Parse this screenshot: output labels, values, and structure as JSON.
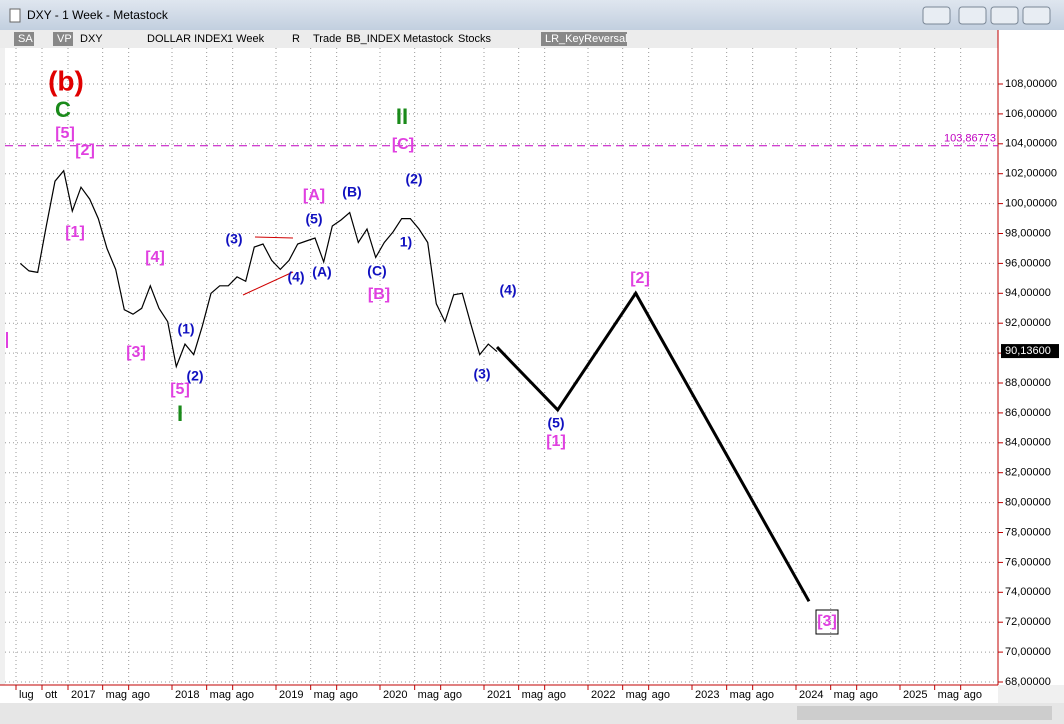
{
  "window": {
    "title": "DXY - 1 Week - Metastock"
  },
  "toolbar": {
    "items": [
      "SA",
      "VP",
      "DXY",
      "DOLLAR INDEX",
      "1 Week",
      "R",
      "Trade",
      "BB_INDEX",
      "Metastock",
      "Stocks",
      "LR_KeyReversal"
    ]
  },
  "chart_data": {
    "type": "line",
    "series": [
      {
        "color": "#000000",
        "x": [
          "2016-07",
          "2016-08",
          "2016-09",
          "2016-10",
          "2016-11",
          "2016-12",
          "2017-01",
          "2017-02",
          "2017-03",
          "2017-04",
          "2017-05",
          "2017-06",
          "2017-07",
          "2017-08",
          "2017-09",
          "2017-10",
          "2017-11",
          "2017-12",
          "2018-01",
          "2018-02",
          "2018-03",
          "2018-04",
          "2018-05",
          "2018-06",
          "2018-07",
          "2018-08",
          "2018-09",
          "2018-10",
          "2018-11",
          "2018-12",
          "2019-01",
          "2019-02",
          "2019-03",
          "2019-04",
          "2019-05",
          "2019-06",
          "2019-07",
          "2019-08",
          "2019-09",
          "2019-10",
          "2019-11",
          "2019-12",
          "2020-01",
          "2020-02",
          "2020-03",
          "2020-04",
          "2020-05",
          "2020-06",
          "2020-07",
          "2020-08",
          "2020-09",
          "2020-10",
          "2020-11",
          "2020-12",
          "2021-01",
          "2021-02"
        ],
        "values": [
          96.0,
          95.5,
          95.4,
          98.5,
          101.5,
          102.2,
          99.5,
          101.1,
          100.3,
          99.0,
          97.0,
          95.6,
          92.9,
          92.6,
          93.0,
          94.5,
          93.0,
          92.1,
          89.1,
          90.6,
          89.9,
          91.8,
          94.0,
          94.5,
          94.5,
          95.1,
          94.8,
          97.1,
          97.3,
          96.2,
          95.6,
          96.2,
          97.3,
          97.5,
          97.7,
          96.1,
          98.5,
          98.9,
          99.4,
          97.4,
          98.3,
          96.4,
          97.4,
          98.1,
          99.0,
          99.0,
          98.3,
          97.4,
          93.3,
          92.1,
          93.9,
          94.0,
          91.9,
          89.9,
          90.6,
          90.1
        ]
      },
      {
        "color": "#000000",
        "x": [
          "2021-02",
          "2021-09",
          "2022-06",
          "2024-02"
        ],
        "values": [
          90.4,
          86.2,
          94.0,
          73.4
        ]
      }
    ],
    "categories": [
      "lug",
      "ott",
      "2017",
      "mag",
      "ago",
      "2018",
      "mag",
      "ago",
      "2019",
      "mag",
      "ago",
      "2020",
      "mag",
      "ago",
      "2021",
      "mag",
      "ago",
      "2022",
      "mag",
      "ago",
      "2023",
      "mag",
      "ago",
      "2024",
      "mag",
      "ago",
      "2025",
      "mag",
      "ago"
    ],
    "ylim": [
      68,
      110.5
    ],
    "yticks": [
      {
        "value": 68,
        "label": "68,00000"
      },
      {
        "value": 70,
        "label": "70,00000"
      },
      {
        "value": 72,
        "label": "72,00000"
      },
      {
        "value": 74,
        "label": "74,00000"
      },
      {
        "value": 76,
        "label": "76,00000"
      },
      {
        "value": 78,
        "label": "78,00000"
      },
      {
        "value": 80,
        "label": "80,00000"
      },
      {
        "value": 82,
        "label": "82,00000"
      },
      {
        "value": 84,
        "label": "84,00000"
      },
      {
        "value": 86,
        "label": "86,00000"
      },
      {
        "value": 88,
        "label": "88,00000"
      },
      {
        "value": 90,
        "label": "90,00000"
      },
      {
        "value": 92,
        "label": "92,00000"
      },
      {
        "value": 94,
        "label": "94,00000"
      },
      {
        "value": 96,
        "label": "96,00000"
      },
      {
        "value": 98,
        "label": "98,00000"
      },
      {
        "value": 100,
        "label": "100,00000"
      },
      {
        "value": 102,
        "label": "102,00000"
      },
      {
        "value": 104,
        "label": "104,00000"
      },
      {
        "value": 106,
        "label": "106,00000"
      },
      {
        "value": 108,
        "label": "108,00000"
      }
    ],
    "hline": {
      "value": 103.86773,
      "label": "103,86773",
      "color": "#c000c0"
    },
    "last_price": {
      "value": 90.136,
      "label": "90,13600"
    },
    "grid": true,
    "waves": [
      "(b)",
      "C",
      "[5]",
      "[2]",
      "[1]",
      "[4]",
      "[3]",
      "(1)",
      "[5]",
      "(2)",
      "I",
      "(3)",
      "(4)",
      "(5)",
      "[A]",
      "(A)",
      "(B)",
      "(C)",
      "[B]",
      "II",
      "[C]",
      "(2)",
      "1)",
      "(4)",
      "(3)",
      "(5)",
      "[1]",
      "[2]",
      "[3]"
    ]
  }
}
